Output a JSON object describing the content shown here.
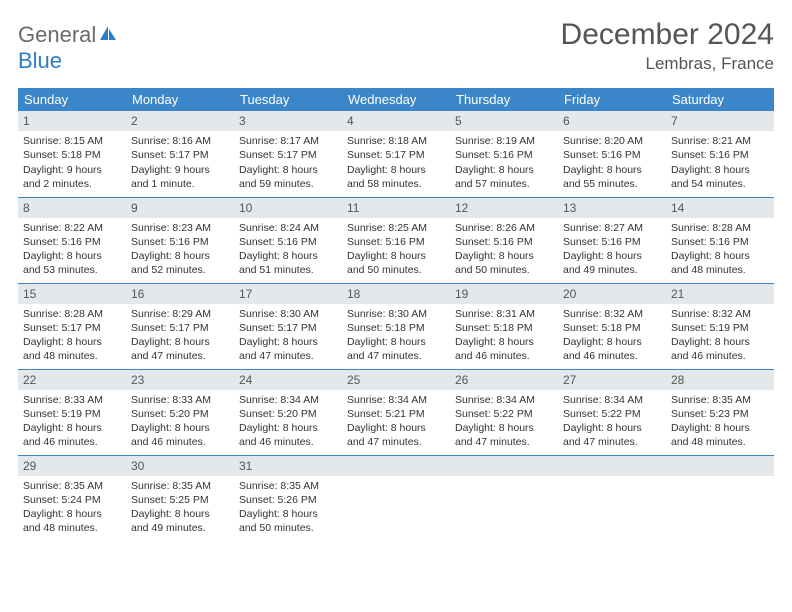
{
  "logo": {
    "part1": "General",
    "part2": "Blue"
  },
  "title": "December 2024",
  "location": "Lembras, France",
  "colors": {
    "header_bg": "#3b86c8",
    "header_text": "#ffffff",
    "daynum_bg": "#e5e8ea",
    "row_border": "#3b86c8",
    "logo_gray": "#6b6b6b",
    "logo_blue": "#2d7dc7",
    "title_color": "#555555",
    "body_text": "#333333"
  },
  "weekdays": [
    "Sunday",
    "Monday",
    "Tuesday",
    "Wednesday",
    "Thursday",
    "Friday",
    "Saturday"
  ],
  "weeks": [
    [
      {
        "n": "1",
        "sr": "Sunrise: 8:15 AM",
        "ss": "Sunset: 5:18 PM",
        "d1": "Daylight: 9 hours",
        "d2": "and 2 minutes."
      },
      {
        "n": "2",
        "sr": "Sunrise: 8:16 AM",
        "ss": "Sunset: 5:17 PM",
        "d1": "Daylight: 9 hours",
        "d2": "and 1 minute."
      },
      {
        "n": "3",
        "sr": "Sunrise: 8:17 AM",
        "ss": "Sunset: 5:17 PM",
        "d1": "Daylight: 8 hours",
        "d2": "and 59 minutes."
      },
      {
        "n": "4",
        "sr": "Sunrise: 8:18 AM",
        "ss": "Sunset: 5:17 PM",
        "d1": "Daylight: 8 hours",
        "d2": "and 58 minutes."
      },
      {
        "n": "5",
        "sr": "Sunrise: 8:19 AM",
        "ss": "Sunset: 5:16 PM",
        "d1": "Daylight: 8 hours",
        "d2": "and 57 minutes."
      },
      {
        "n": "6",
        "sr": "Sunrise: 8:20 AM",
        "ss": "Sunset: 5:16 PM",
        "d1": "Daylight: 8 hours",
        "d2": "and 55 minutes."
      },
      {
        "n": "7",
        "sr": "Sunrise: 8:21 AM",
        "ss": "Sunset: 5:16 PM",
        "d1": "Daylight: 8 hours",
        "d2": "and 54 minutes."
      }
    ],
    [
      {
        "n": "8",
        "sr": "Sunrise: 8:22 AM",
        "ss": "Sunset: 5:16 PM",
        "d1": "Daylight: 8 hours",
        "d2": "and 53 minutes."
      },
      {
        "n": "9",
        "sr": "Sunrise: 8:23 AM",
        "ss": "Sunset: 5:16 PM",
        "d1": "Daylight: 8 hours",
        "d2": "and 52 minutes."
      },
      {
        "n": "10",
        "sr": "Sunrise: 8:24 AM",
        "ss": "Sunset: 5:16 PM",
        "d1": "Daylight: 8 hours",
        "d2": "and 51 minutes."
      },
      {
        "n": "11",
        "sr": "Sunrise: 8:25 AM",
        "ss": "Sunset: 5:16 PM",
        "d1": "Daylight: 8 hours",
        "d2": "and 50 minutes."
      },
      {
        "n": "12",
        "sr": "Sunrise: 8:26 AM",
        "ss": "Sunset: 5:16 PM",
        "d1": "Daylight: 8 hours",
        "d2": "and 50 minutes."
      },
      {
        "n": "13",
        "sr": "Sunrise: 8:27 AM",
        "ss": "Sunset: 5:16 PM",
        "d1": "Daylight: 8 hours",
        "d2": "and 49 minutes."
      },
      {
        "n": "14",
        "sr": "Sunrise: 8:28 AM",
        "ss": "Sunset: 5:16 PM",
        "d1": "Daylight: 8 hours",
        "d2": "and 48 minutes."
      }
    ],
    [
      {
        "n": "15",
        "sr": "Sunrise: 8:28 AM",
        "ss": "Sunset: 5:17 PM",
        "d1": "Daylight: 8 hours",
        "d2": "and 48 minutes."
      },
      {
        "n": "16",
        "sr": "Sunrise: 8:29 AM",
        "ss": "Sunset: 5:17 PM",
        "d1": "Daylight: 8 hours",
        "d2": "and 47 minutes."
      },
      {
        "n": "17",
        "sr": "Sunrise: 8:30 AM",
        "ss": "Sunset: 5:17 PM",
        "d1": "Daylight: 8 hours",
        "d2": "and 47 minutes."
      },
      {
        "n": "18",
        "sr": "Sunrise: 8:30 AM",
        "ss": "Sunset: 5:18 PM",
        "d1": "Daylight: 8 hours",
        "d2": "and 47 minutes."
      },
      {
        "n": "19",
        "sr": "Sunrise: 8:31 AM",
        "ss": "Sunset: 5:18 PM",
        "d1": "Daylight: 8 hours",
        "d2": "and 46 minutes."
      },
      {
        "n": "20",
        "sr": "Sunrise: 8:32 AM",
        "ss": "Sunset: 5:18 PM",
        "d1": "Daylight: 8 hours",
        "d2": "and 46 minutes."
      },
      {
        "n": "21",
        "sr": "Sunrise: 8:32 AM",
        "ss": "Sunset: 5:19 PM",
        "d1": "Daylight: 8 hours",
        "d2": "and 46 minutes."
      }
    ],
    [
      {
        "n": "22",
        "sr": "Sunrise: 8:33 AM",
        "ss": "Sunset: 5:19 PM",
        "d1": "Daylight: 8 hours",
        "d2": "and 46 minutes."
      },
      {
        "n": "23",
        "sr": "Sunrise: 8:33 AM",
        "ss": "Sunset: 5:20 PM",
        "d1": "Daylight: 8 hours",
        "d2": "and 46 minutes."
      },
      {
        "n": "24",
        "sr": "Sunrise: 8:34 AM",
        "ss": "Sunset: 5:20 PM",
        "d1": "Daylight: 8 hours",
        "d2": "and 46 minutes."
      },
      {
        "n": "25",
        "sr": "Sunrise: 8:34 AM",
        "ss": "Sunset: 5:21 PM",
        "d1": "Daylight: 8 hours",
        "d2": "and 47 minutes."
      },
      {
        "n": "26",
        "sr": "Sunrise: 8:34 AM",
        "ss": "Sunset: 5:22 PM",
        "d1": "Daylight: 8 hours",
        "d2": "and 47 minutes."
      },
      {
        "n": "27",
        "sr": "Sunrise: 8:34 AM",
        "ss": "Sunset: 5:22 PM",
        "d1": "Daylight: 8 hours",
        "d2": "and 47 minutes."
      },
      {
        "n": "28",
        "sr": "Sunrise: 8:35 AM",
        "ss": "Sunset: 5:23 PM",
        "d1": "Daylight: 8 hours",
        "d2": "and 48 minutes."
      }
    ],
    [
      {
        "n": "29",
        "sr": "Sunrise: 8:35 AM",
        "ss": "Sunset: 5:24 PM",
        "d1": "Daylight: 8 hours",
        "d2": "and 48 minutes."
      },
      {
        "n": "30",
        "sr": "Sunrise: 8:35 AM",
        "ss": "Sunset: 5:25 PM",
        "d1": "Daylight: 8 hours",
        "d2": "and 49 minutes."
      },
      {
        "n": "31",
        "sr": "Sunrise: 8:35 AM",
        "ss": "Sunset: 5:26 PM",
        "d1": "Daylight: 8 hours",
        "d2": "and 50 minutes."
      },
      null,
      null,
      null,
      null
    ]
  ]
}
